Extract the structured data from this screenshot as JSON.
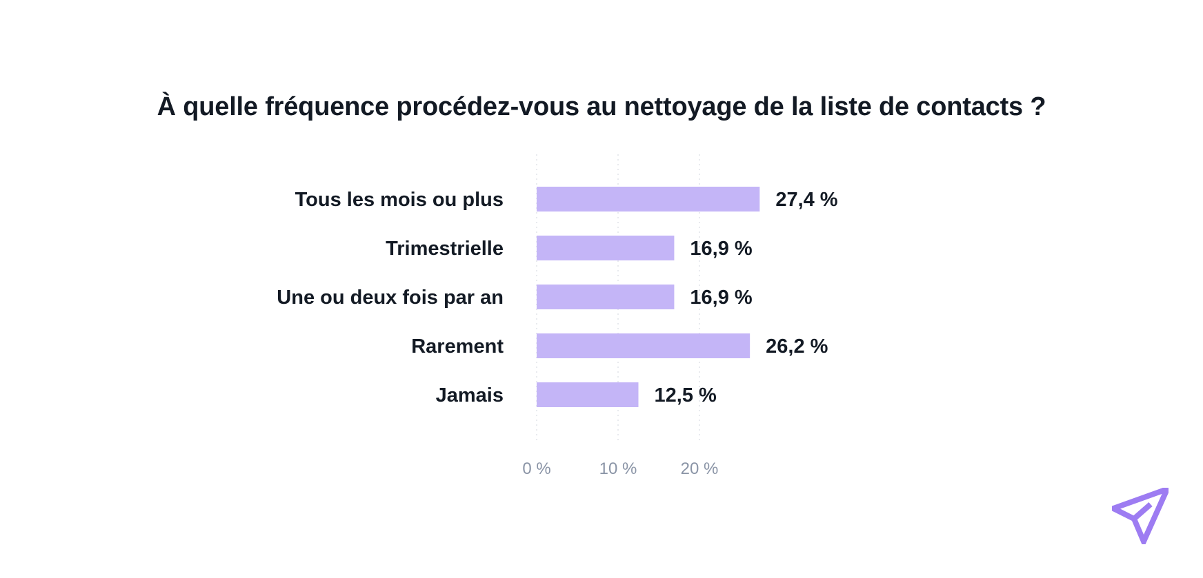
{
  "chart_data": {
    "type": "bar",
    "orientation": "horizontal",
    "title": "À quelle fréquence procédez-vous au nettoyage de la liste de contacts ?",
    "categories": [
      "Tous les mois ou plus",
      "Trimestrielle",
      "Une ou deux fois par an",
      "Rarement",
      "Jamais"
    ],
    "values": [
      27.4,
      16.9,
      16.9,
      26.2,
      12.5
    ],
    "value_labels": [
      "27,4 %",
      "16,9 %",
      "16,9 %",
      "26,2 %",
      "12,5 %"
    ],
    "ticks": [
      0,
      10,
      20
    ],
    "tick_labels": [
      "0 %",
      "10 %",
      "20 %"
    ],
    "xlim": [
      0,
      30
    ],
    "grid": "vertical dotted",
    "legend": "none",
    "colors": {
      "bar": "#c4b5f7",
      "text": "#131a24",
      "tick": "#8a94a6",
      "grid": "#d9dde3",
      "logo": "#9d7cf2"
    }
  },
  "brand": {
    "logo_icon": "paper-plane-icon"
  }
}
